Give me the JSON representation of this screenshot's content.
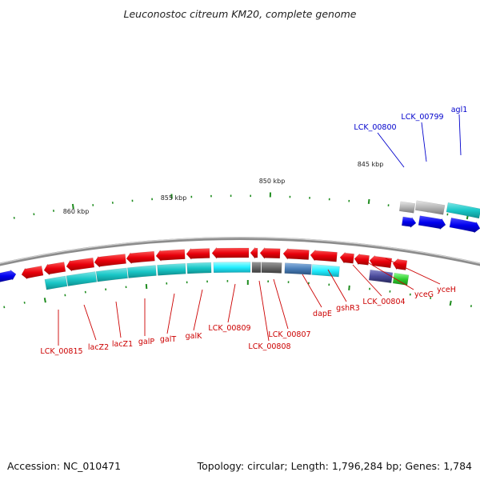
{
  "title": "Leuconostoc citreum KM20, complete genome",
  "footer": {
    "accession": "Accession: NC_010471",
    "summary": "Topology: circular; Length: 1,796,284 bp; Genes: 1,784"
  },
  "ticks": [
    "860 kbp",
    "855 kbp",
    "850 kbp",
    "845 kbp"
  ],
  "colors": {
    "reverse_gene": "#e8000b",
    "forward_gene": "#0000ee",
    "cds_cyan": "#19c6c6",
    "label_red": "#cc0000",
    "label_blue": "#0000cc",
    "tick_green": "#1e8c1e",
    "backbone_gray": "#8c8c8c"
  },
  "labels_blue": [
    "LCK_00800",
    "LCK_00799",
    "agl1"
  ],
  "labels_red": [
    "LCK_00815",
    "lacZ2",
    "lacZ1",
    "galP",
    "galT",
    "galK",
    "LCK_00809",
    "LCK_00808",
    "LCK_00807",
    "dapE",
    "gshR3",
    "LCK_00804",
    "yceG",
    "yceH"
  ]
}
